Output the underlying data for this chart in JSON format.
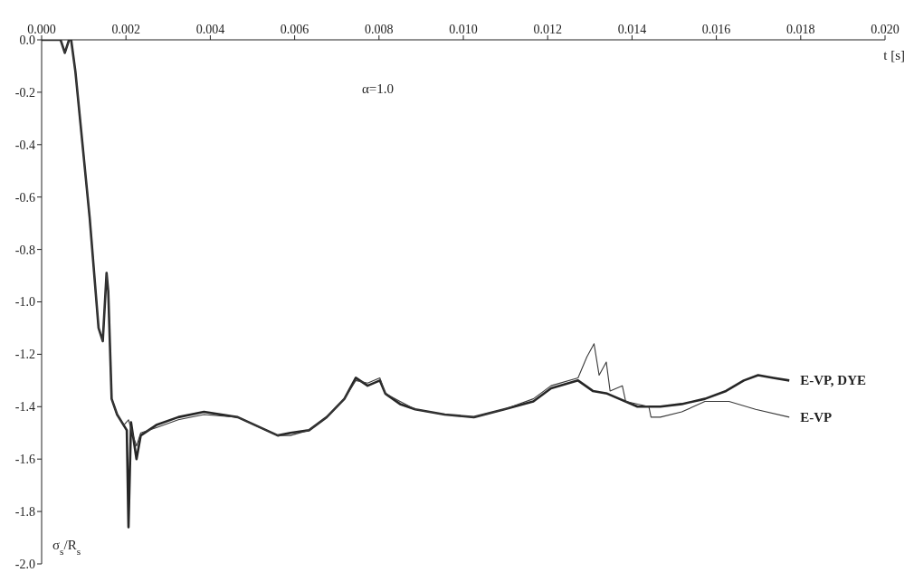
{
  "chart_data": {
    "type": "line",
    "xlabel": "t [s]",
    "ylabel": "σ$_{s}$/R$_{s}$",
    "annotations": [
      "α=1.0"
    ],
    "xlim": [
      0,
      0.02
    ],
    "ylim": [
      -2,
      0
    ],
    "xticks": [
      {
        "value": 0,
        "label": "0.000"
      },
      {
        "value": 0.002,
        "label": "0.002"
      },
      {
        "value": 0.004,
        "label": "0.004"
      },
      {
        "value": 0.006,
        "label": "0.006"
      },
      {
        "value": 0.008,
        "label": "0.008"
      },
      {
        "value": 0.01,
        "label": "0.010"
      },
      {
        "value": 0.012,
        "label": "0.012"
      },
      {
        "value": 0.014,
        "label": "0.014"
      },
      {
        "value": 0.016,
        "label": "0.016"
      },
      {
        "value": 0.018,
        "label": "0.018"
      },
      {
        "value": 0.02,
        "label": "0.020"
      }
    ],
    "yticks": [
      {
        "value": 0,
        "label": "0.0"
      },
      {
        "value": -0.2,
        "label": "-0.2"
      },
      {
        "value": -0.4,
        "label": "-0.4"
      },
      {
        "value": -0.6,
        "label": "-0.6"
      },
      {
        "value": -0.8,
        "label": "-0.8"
      },
      {
        "value": -1,
        "label": "-1.0"
      },
      {
        "value": -1.2,
        "label": "-1.2"
      },
      {
        "value": -1.4,
        "label": "-1.4"
      },
      {
        "value": -1.6,
        "label": "-1.6"
      },
      {
        "value": -1.8,
        "label": "-1.8"
      },
      {
        "value": -2,
        "label": "-2.0"
      }
    ],
    "grid": false,
    "legend": false,
    "marker": "none",
    "line_style": "solid",
    "series": [
      {
        "name": "E-VP, DYE",
        "color": "#262626",
        "x": [
          0,
          0.00045,
          0.00055,
          0.00065,
          0.0007,
          0.0008,
          0.00114,
          0.00135,
          0.00145,
          0.00154,
          0.00158,
          0.00166,
          0.00179,
          0.00202,
          0.00206,
          0.00212,
          0.00225,
          0.00235,
          0.00272,
          0.00324,
          0.00385,
          0.00465,
          0.0056,
          0.0059,
          0.00634,
          0.00676,
          0.00718,
          0.00745,
          0.00773,
          0.00802,
          0.00815,
          0.0085,
          0.00886,
          0.00956,
          0.01025,
          0.01097,
          0.01166,
          0.01208,
          0.01272,
          0.01307,
          0.01341,
          0.01413,
          0.01467,
          0.01518,
          0.01573,
          0.01623,
          0.01665,
          0.01699,
          0.01735,
          0.01773
        ],
        "values": [
          0,
          0,
          -0.05,
          0,
          0,
          -0.12,
          -0.68,
          -1.1,
          -1.15,
          -0.89,
          -0.96,
          -1.37,
          -1.43,
          -1.49,
          -1.86,
          -1.46,
          -1.6,
          -1.51,
          -1.47,
          -1.44,
          -1.42,
          -1.44,
          -1.51,
          -1.5,
          -1.49,
          -1.44,
          -1.37,
          -1.29,
          -1.32,
          -1.3,
          -1.35,
          -1.39,
          -1.41,
          -1.43,
          -1.44,
          -1.41,
          -1.38,
          -1.33,
          -1.3,
          -1.34,
          -1.35,
          -1.4,
          -1.4,
          -1.39,
          -1.37,
          -1.34,
          -1.3,
          -1.28,
          -1.29,
          -1.3
        ]
      },
      {
        "name": "E-VP",
        "color": "#3a3a3a",
        "x": [
          0,
          0.00045,
          0.00055,
          0.00065,
          0.0007,
          0.0008,
          0.00114,
          0.00135,
          0.00145,
          0.00154,
          0.00158,
          0.00166,
          0.00179,
          0.00195,
          0.00206,
          0.00215,
          0.00225,
          0.00235,
          0.00272,
          0.00324,
          0.00385,
          0.00465,
          0.0056,
          0.0059,
          0.00634,
          0.00676,
          0.00718,
          0.00745,
          0.00773,
          0.00802,
          0.00815,
          0.0085,
          0.00886,
          0.00956,
          0.01025,
          0.01097,
          0.01166,
          0.01208,
          0.01272,
          0.01293,
          0.0131,
          0.01322,
          0.01339,
          0.01348,
          0.01377,
          0.01385,
          0.0144,
          0.01445,
          0.01467,
          0.01518,
          0.01573,
          0.0163,
          0.01693,
          0.01773
        ],
        "values": [
          0,
          0,
          -0.05,
          0,
          0,
          -0.12,
          -0.68,
          -1.1,
          -1.15,
          -0.89,
          -0.96,
          -1.37,
          -1.43,
          -1.47,
          -1.45,
          -1.5,
          -1.55,
          -1.5,
          -1.48,
          -1.45,
          -1.43,
          -1.44,
          -1.51,
          -1.51,
          -1.49,
          -1.44,
          -1.37,
          -1.3,
          -1.31,
          -1.29,
          -1.35,
          -1.38,
          -1.41,
          -1.43,
          -1.44,
          -1.41,
          -1.37,
          -1.32,
          -1.29,
          -1.21,
          -1.16,
          -1.28,
          -1.23,
          -1.34,
          -1.32,
          -1.38,
          -1.4,
          -1.44,
          -1.44,
          -1.42,
          -1.38,
          -1.38,
          -1.41,
          -1.44
        ]
      }
    ]
  }
}
